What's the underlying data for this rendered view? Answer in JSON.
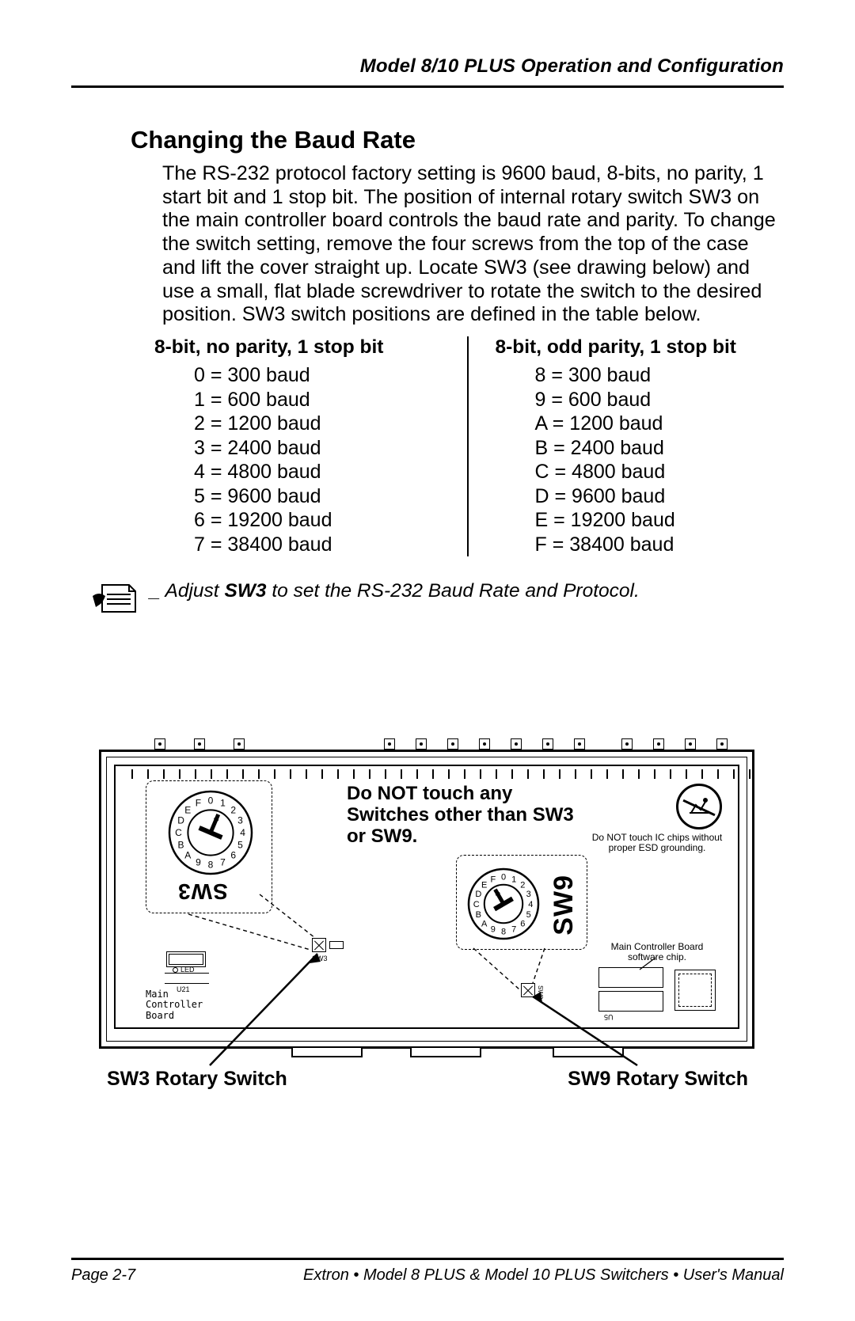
{
  "header": {
    "running_head": "Model 8/10 PLUS Operation and Configuration"
  },
  "section": {
    "title": "Changing the Baud Rate",
    "paragraph": "The RS-232 protocol factory setting is 9600 baud, 8-bits, no parity, 1 start bit and 1 stop bit. The position of internal rotary switch SW3 on the main controller board controls the baud rate and parity. To change the switch setting, remove the four screws from the top of the case and lift the cover straight up. Locate SW3 (see drawing below) and use a small, flat blade screwdriver to rotate the switch to the desired position. SW3 switch positions are defined in the table below."
  },
  "baud_table": {
    "left": {
      "header": "8-bit, no parity, 1 stop bit",
      "rows": [
        "0 = 300 baud",
        "1 = 600 baud",
        "2 = 1200 baud",
        "3 = 2400 baud",
        "4 = 4800 baud",
        "5 = 9600 baud",
        "6 = 19200 baud",
        "7 = 38400 baud"
      ]
    },
    "right": {
      "header": "8-bit, odd parity, 1 stop bit",
      "rows": [
        "8 = 300 baud",
        "9 = 600 baud",
        "A = 1200 baud",
        "B = 2400 baud",
        "C = 4800 baud",
        "D = 9600 baud",
        "E = 19200 baud",
        "F = 38400 baud"
      ]
    }
  },
  "note": {
    "prefix": "_ Adjust ",
    "strong": "SW3",
    "suffix": " to set the RS-232 Baud Rate and Protocol."
  },
  "diagram": {
    "warning_text": "Do NOT touch any Switches other than SW3 or SW9.",
    "esd_text": "Do NOT touch IC chips without proper ESD grounding.",
    "mc_text": "Main Controller Board software chip.",
    "mcb_label": "Main\nController\nBoard",
    "led_label": "LED",
    "u21_label": "U21",
    "u5_label": "U5",
    "sw3_label": "SW3",
    "sw9_label": "SW9",
    "sw3_caption": "SW3 Rotary Switch",
    "sw9_caption": "SW9 Rotary Switch",
    "sw3_dial": {
      "pointer_deg": 23,
      "chars": [
        "0",
        "1",
        "2",
        "3",
        "4",
        "5",
        "6",
        "7",
        "8",
        "9",
        "A",
        "B",
        "C",
        "D",
        "E",
        "F"
      ]
    },
    "sw9_dial": {
      "pointer_deg": -30,
      "chars": [
        "0",
        "1",
        "2",
        "3",
        "4",
        "5",
        "6",
        "7",
        "8",
        "9",
        "A",
        "B",
        "C",
        "D",
        "E",
        "F"
      ]
    },
    "connectors_x": [
      70,
      120,
      170,
      360,
      400,
      440,
      480,
      520,
      560,
      600,
      660,
      700,
      740,
      780
    ],
    "tabs_x": [
      240,
      390,
      570
    ]
  },
  "footer": {
    "page": "Page 2-7",
    "manual": "Extron • Model 8 PLUS & Model 10 PLUS Switchers • User's Manual"
  },
  "colors": {
    "text": "#000000",
    "bg": "#ffffff",
    "rule": "#000000"
  }
}
